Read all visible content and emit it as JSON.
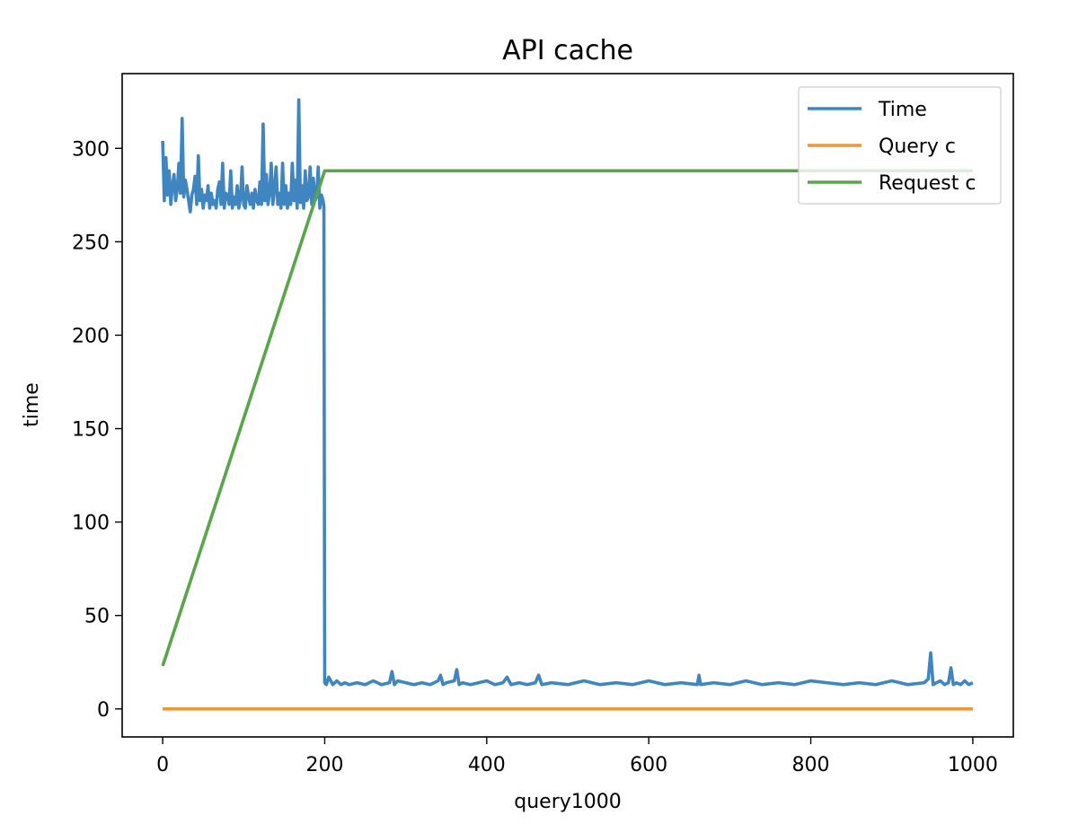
{
  "chart_data": {
    "type": "line",
    "title": "API cache",
    "xlabel": "query1000",
    "ylabel": "time",
    "xlim": [
      -50,
      1050
    ],
    "ylim": [
      -15,
      340
    ],
    "xticks": [
      0,
      200,
      400,
      600,
      800,
      1000
    ],
    "yticks": [
      0,
      50,
      100,
      150,
      200,
      250,
      300
    ],
    "grid": false,
    "legend_position": "top-right",
    "series": [
      {
        "name": "Time",
        "color": "#3f86c0",
        "x": [
          0,
          2,
          4,
          6,
          8,
          10,
          12,
          14,
          16,
          18,
          20,
          22,
          24,
          26,
          28,
          30,
          32,
          34,
          36,
          38,
          40,
          42,
          44,
          46,
          48,
          50,
          52,
          54,
          56,
          58,
          60,
          62,
          64,
          66,
          68,
          70,
          72,
          74,
          76,
          78,
          80,
          82,
          84,
          86,
          88,
          90,
          92,
          94,
          96,
          98,
          100,
          102,
          104,
          106,
          108,
          110,
          112,
          114,
          116,
          118,
          120,
          122,
          124,
          126,
          128,
          130,
          132,
          134,
          136,
          138,
          140,
          142,
          144,
          146,
          148,
          150,
          152,
          154,
          156,
          158,
          160,
          162,
          164,
          166,
          168,
          170,
          172,
          174,
          176,
          178,
          180,
          182,
          184,
          186,
          188,
          190,
          192,
          194,
          196,
          198,
          199,
          200,
          202,
          205,
          210,
          215,
          220,
          225,
          230,
          240,
          250,
          260,
          270,
          280,
          283,
          286,
          290,
          300,
          310,
          320,
          330,
          340,
          343,
          346,
          350,
          360,
          363,
          366,
          370,
          380,
          390,
          400,
          410,
          420,
          425,
          430,
          440,
          450,
          460,
          464,
          468,
          480,
          500,
          520,
          540,
          560,
          580,
          600,
          620,
          640,
          660,
          662,
          664,
          680,
          700,
          720,
          740,
          760,
          780,
          800,
          820,
          840,
          860,
          880,
          900,
          920,
          940,
          945,
          948,
          951,
          955,
          960,
          965,
          970,
          973,
          976,
          980,
          985,
          990,
          995,
          1000
        ],
        "values": [
          304,
          272,
          295,
          275,
          288,
          270,
          280,
          286,
          272,
          278,
          292,
          276,
          316,
          274,
          283,
          278,
          272,
          266,
          275,
          278,
          285,
          270,
          296,
          272,
          278,
          268,
          275,
          272,
          280,
          268,
          276,
          270,
          272,
          268,
          278,
          282,
          270,
          292,
          268,
          276,
          275,
          270,
          288,
          268,
          274,
          270,
          280,
          268,
          273,
          290,
          270,
          268,
          280,
          274,
          270,
          276,
          268,
          278,
          272,
          270,
          282,
          270,
          313,
          272,
          286,
          270,
          276,
          292,
          270,
          278,
          290,
          270,
          276,
          268,
          292,
          270,
          280,
          268,
          276,
          270,
          292,
          272,
          283,
          268,
          326,
          271,
          280,
          268,
          288,
          272,
          274,
          290,
          270,
          284,
          272,
          274,
          290,
          268,
          275,
          272,
          269,
          14,
          13,
          17,
          13,
          15,
          13,
          14,
          13,
          14,
          13,
          15,
          13,
          14,
          20,
          13,
          15,
          14,
          13,
          14,
          13,
          15,
          18,
          13,
          14,
          15,
          21,
          13,
          14,
          13,
          14,
          15,
          13,
          14,
          17,
          13,
          14,
          13,
          14,
          18,
          13,
          14,
          13,
          15,
          13,
          14,
          13,
          15,
          13,
          14,
          13,
          18,
          13,
          14,
          13,
          15,
          13,
          14,
          13,
          15,
          14,
          13,
          14,
          13,
          15,
          13,
          14,
          16,
          30,
          13,
          14,
          15,
          13,
          14,
          22,
          13,
          14,
          13,
          15,
          13,
          14
        ]
      },
      {
        "name": "Query c",
        "color": "#f0963a",
        "x": [
          0,
          1000
        ],
        "values": [
          0,
          0
        ]
      },
      {
        "name": "Request c",
        "color": "#58a64a",
        "x": [
          0,
          200,
          1000
        ],
        "values": [
          23,
          288,
          288
        ]
      }
    ]
  }
}
